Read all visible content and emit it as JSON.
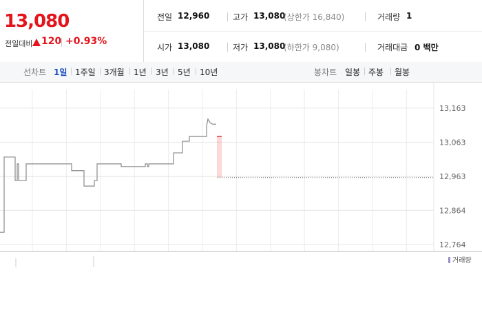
{
  "header": {
    "price": "13,080",
    "change_label": "전일대비",
    "change": "120",
    "change_rate": "+0.93%",
    "stats": [
      {
        "label": "전일",
        "value": "12,960"
      },
      {
        "label": "고가",
        "value": "13,080",
        "note": "(상한가 16,840)"
      },
      {
        "label": "거래량",
        "value": "1"
      },
      {
        "label": "시가",
        "value": "13,080"
      },
      {
        "label": "저가",
        "value": "13,080",
        "note": "(하한가 9,080)"
      },
      {
        "label": "거래대금",
        "value": "0 백만"
      }
    ]
  },
  "tabs": {
    "line_label": "선차트",
    "line": [
      "1일",
      "1주일",
      "3개월",
      "1년",
      "3년",
      "5년",
      "10년"
    ],
    "active_index": 0,
    "candle_label": "봉차트",
    "candle": [
      "일봉",
      "주봉",
      "월봉"
    ]
  },
  "chart_data": {
    "type": "line",
    "x": [
      0,
      6,
      6,
      22,
      22,
      25,
      25,
      27,
      27,
      38,
      38,
      104,
      104,
      122,
      122,
      137,
      137,
      141,
      141,
      176,
      176,
      211,
      211,
      214,
      214,
      216,
      216,
      252,
      252,
      265,
      265,
      275,
      275,
      300,
      300,
      302,
      305,
      309,
      314
    ],
    "series": [
      {
        "color": "#8a8a8a",
        "values": [
          12800,
          12800,
          13020,
          13020,
          12951,
          12951,
          13000,
          13000,
          12951,
          12951,
          13000,
          13000,
          12980,
          12980,
          12935,
          12935,
          12951,
          12951,
          13000,
          13000,
          12992,
          12992,
          13000,
          13000,
          12992,
          12992,
          13000,
          13000,
          13032,
          13032,
          13066,
          13066,
          13080,
          13080,
          13110,
          13131,
          13120,
          13116,
          13116
        ]
      }
    ],
    "xlim": [
      0,
      630
    ],
    "ylim": [
      12744,
      13197
    ],
    "yticks": [
      {
        "value": 13163,
        "label": "13,163"
      },
      {
        "value": 13063,
        "label": "13,063"
      },
      {
        "value": 12963,
        "label": "12,963"
      },
      {
        "value": 12864,
        "label": "12,864"
      },
      {
        "value": 12764,
        "label": "12,764"
      }
    ],
    "grid": true,
    "reference_line": {
      "value": 12960,
      "color": "#666"
    },
    "change_bar": {
      "values": [
        12960,
        13080
      ],
      "color": "#f03c3c"
    },
    "volume_legend": {
      "name": "거래량",
      "color": "#9b8ccc"
    }
  }
}
